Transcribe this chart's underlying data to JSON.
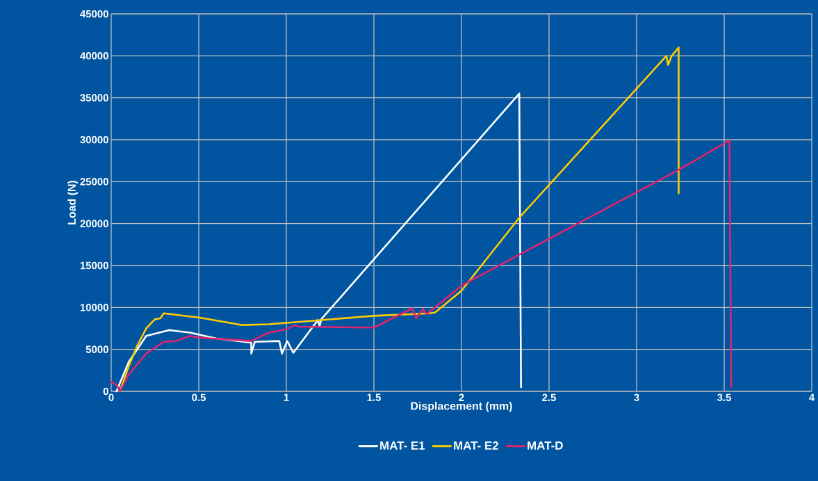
{
  "chart_data": {
    "type": "line",
    "xlabel": "Displacement (mm)",
    "ylabel": "Load (N)",
    "xlim": [
      0,
      4
    ],
    "xticks": [
      0,
      0.5,
      1,
      1.5,
      2,
      2.5,
      3,
      3.5,
      4
    ],
    "ylim": [
      0,
      45000
    ],
    "yticks": [
      0,
      5000,
      10000,
      15000,
      20000,
      25000,
      30000,
      35000,
      40000,
      45000
    ],
    "grid": true,
    "legend": "bottom",
    "marker": "none",
    "line_style": "solid",
    "series": [
      {
        "name": "MAT- E1",
        "color": "#ffffff",
        "x": [
          0.03,
          0.1,
          0.2,
          0.33,
          0.45,
          0.6,
          0.8,
          0.8,
          0.82,
          0.96,
          0.975,
          1.005,
          1.04,
          1.18,
          1.19,
          1.2,
          2.33,
          2.34
        ],
        "values": [
          0,
          3500,
          6600,
          7300,
          7000,
          6300,
          5800,
          4500,
          5900,
          6000,
          4500,
          6000,
          4600,
          8500,
          7800,
          8600,
          35500,
          500
        ]
      },
      {
        "name": "MAT- E2",
        "color": "#ffcc00",
        "x": [
          0.05,
          0.1,
          0.15,
          0.2,
          0.25,
          0.28,
          0.3,
          0.5,
          0.75,
          0.9,
          1.2,
          1.5,
          1.82,
          1.85,
          2.0,
          2.33,
          3.17,
          3.18,
          3.2,
          3.24,
          3.24
        ],
        "values": [
          0,
          3000,
          5500,
          7500,
          8600,
          8700,
          9300,
          8800,
          7900,
          8000,
          8500,
          9000,
          9300,
          9400,
          12000,
          20700,
          40000,
          38900,
          40000,
          41000,
          23600
        ]
      },
      {
        "name": "MAT-D",
        "color": "#e0246f",
        "x": [
          0,
          0.03,
          0.05,
          0.1,
          0.2,
          0.3,
          0.37,
          0.45,
          0.5,
          0.8,
          0.9,
          1.0,
          1.05,
          1.07,
          1.5,
          1.72,
          1.74,
          1.78,
          1.8,
          1.83,
          2.0,
          2.33,
          3.24,
          3.53,
          3.54
        ],
        "values": [
          1100,
          800,
          0,
          2000,
          4500,
          5900,
          6000,
          6600,
          6400,
          6000,
          7000,
          7400,
          7900,
          7700,
          7600,
          9900,
          8700,
          9800,
          9200,
          9700,
          12600,
          16300,
          26400,
          29900,
          500
        ]
      }
    ]
  }
}
